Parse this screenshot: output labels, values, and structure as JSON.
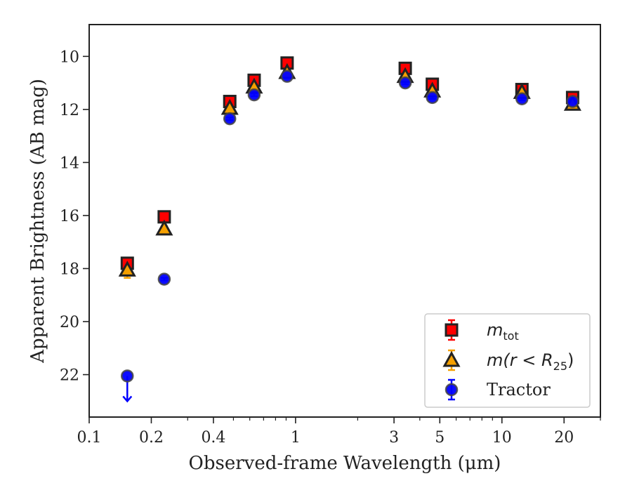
{
  "chart_data": {
    "type": "scatter",
    "title": "",
    "xlabel": "Observed-frame Wavelength (μm)",
    "ylabel": "Apparent Brightness (AB mag)",
    "xscale": "log",
    "xlim": [
      0.1,
      30
    ],
    "ylim": [
      23.6,
      8.8
    ],
    "y_inverted": true,
    "grid": false,
    "legend_position": "lower-right",
    "x_ticks": [
      {
        "value": 0.1,
        "label": "0.1"
      },
      {
        "value": 0.2,
        "label": "0.2"
      },
      {
        "value": 0.4,
        "label": "0.4"
      },
      {
        "value": 1,
        "label": "1"
      },
      {
        "value": 3,
        "label": "3"
      },
      {
        "value": 5,
        "label": "5"
      },
      {
        "value": 10,
        "label": "10"
      },
      {
        "value": 20,
        "label": "20"
      }
    ],
    "x_minor_ticks": [
      0.3,
      0.5,
      0.6,
      0.7,
      0.8,
      0.9,
      2,
      4,
      6,
      7,
      8,
      9,
      30
    ],
    "y_ticks": [
      {
        "value": 10,
        "label": "10"
      },
      {
        "value": 12,
        "label": "12"
      },
      {
        "value": 14,
        "label": "14"
      },
      {
        "value": 16,
        "label": "16"
      },
      {
        "value": 18,
        "label": "18"
      },
      {
        "value": 20,
        "label": "20"
      },
      {
        "value": 22,
        "label": "22"
      }
    ],
    "series": [
      {
        "name": "m_tot",
        "legend_base": "m",
        "legend_sub": "tot",
        "marker": "square",
        "color": "#ff0000",
        "edge_color": "#222222",
        "points": [
          {
            "x": 0.153,
            "y": 17.8,
            "err": 0.2
          },
          {
            "x": 0.231,
            "y": 16.05,
            "err": 0.1
          },
          {
            "x": 0.48,
            "y": 11.7,
            "err": 0.05
          },
          {
            "x": 0.63,
            "y": 10.9,
            "err": 0.05
          },
          {
            "x": 0.91,
            "y": 10.25,
            "err": 0.05
          },
          {
            "x": 3.4,
            "y": 10.45,
            "err": 0.05
          },
          {
            "x": 4.6,
            "y": 11.05,
            "err": 0.05
          },
          {
            "x": 12.5,
            "y": 11.25,
            "err": 0.05
          },
          {
            "x": 22.0,
            "y": 11.55,
            "err": 0.05
          }
        ]
      },
      {
        "name": "m(r < R_25)",
        "legend_base": "m(r < R",
        "legend_sub": "25",
        "legend_close": ")",
        "marker": "triangle",
        "color": "#f5a000",
        "edge_color": "#222222",
        "points": [
          {
            "x": 0.153,
            "y": 18.05,
            "err": 0.3
          },
          {
            "x": 0.231,
            "y": 16.5,
            "err": 0.1
          },
          {
            "x": 0.48,
            "y": 11.95,
            "err": 0.05
          },
          {
            "x": 0.63,
            "y": 11.15,
            "err": 0.05
          },
          {
            "x": 0.91,
            "y": 10.6,
            "err": 0.05
          },
          {
            "x": 3.4,
            "y": 10.75,
            "err": 0.05
          },
          {
            "x": 4.6,
            "y": 11.3,
            "err": 0.05
          },
          {
            "x": 12.5,
            "y": 11.35,
            "err": 0.05
          },
          {
            "x": 22.0,
            "y": 11.8,
            "err": 0.05
          }
        ]
      },
      {
        "name": "Tractor",
        "marker": "circle",
        "color": "#0000ff",
        "edge_color": "#444444",
        "points": [
          {
            "x": 0.153,
            "y": 22.05,
            "err": 0,
            "upper_limit": true
          },
          {
            "x": 0.231,
            "y": 18.4,
            "err": 0.05
          },
          {
            "x": 0.48,
            "y": 12.35,
            "err": 0.05
          },
          {
            "x": 0.63,
            "y": 11.45,
            "err": 0.05
          },
          {
            "x": 0.91,
            "y": 10.75,
            "err": 0.05
          },
          {
            "x": 3.4,
            "y": 11.0,
            "err": 0.05
          },
          {
            "x": 4.6,
            "y": 11.55,
            "err": 0.05
          },
          {
            "x": 12.5,
            "y": 11.6,
            "err": 0.05
          },
          {
            "x": 22.0,
            "y": 11.7,
            "err": 0.05
          }
        ]
      }
    ]
  }
}
